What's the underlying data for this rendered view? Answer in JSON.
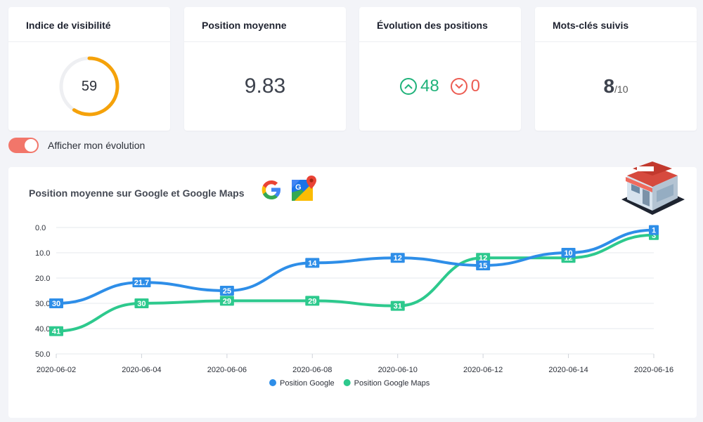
{
  "cards": {
    "visibility": {
      "title": "Indice de visibilité",
      "value": "59",
      "percent": 59
    },
    "avg_position": {
      "title": "Position moyenne",
      "value": "9.83"
    },
    "evolution": {
      "title": "Évolution des positions",
      "up": "48",
      "down": "0"
    },
    "keywords": {
      "title": "Mots-clés suivis",
      "value": "8",
      "total": "/10"
    }
  },
  "toggle": {
    "label": "Afficher mon évolution",
    "on": true
  },
  "colors": {
    "google": "#2e8ee8",
    "maps": "#2dc98d",
    "gauge": "#f5a20a",
    "up": "#1fb27a",
    "down": "#ec5c52",
    "toggle": "#f2766a"
  },
  "icons": [
    "google-logo-icon",
    "google-maps-logo-icon",
    "store-icon",
    "chevron-up-icon",
    "chevron-down-icon"
  ],
  "chart_data": {
    "type": "line",
    "title": "Position moyenne sur Google et Google Maps",
    "x": [
      "2020-06-02",
      "2020-06-04",
      "2020-06-06",
      "2020-06-08",
      "2020-06-10",
      "2020-06-12",
      "2020-06-14",
      "2020-06-16"
    ],
    "y_ticks": [
      "0.0",
      "10.0",
      "20.0",
      "30.0",
      "40.0",
      "50.0"
    ],
    "ylim": [
      0,
      50
    ],
    "y_inverted": true,
    "grid": true,
    "legend_position": "bottom",
    "series": [
      {
        "name": "Position Google",
        "color": "#2e8ee8",
        "values": [
          30,
          21.7,
          25,
          14,
          12,
          15,
          10,
          1
        ],
        "labels": [
          "30",
          "21.7",
          "25",
          "14",
          "12",
          "15",
          "10",
          "1"
        ]
      },
      {
        "name": "Position Google Maps",
        "color": "#2dc98d",
        "values": [
          41,
          30,
          29,
          29,
          31,
          12,
          12,
          3
        ],
        "labels": [
          "41",
          "30",
          "29",
          "29",
          "31",
          "12",
          "12",
          "3"
        ]
      }
    ]
  }
}
